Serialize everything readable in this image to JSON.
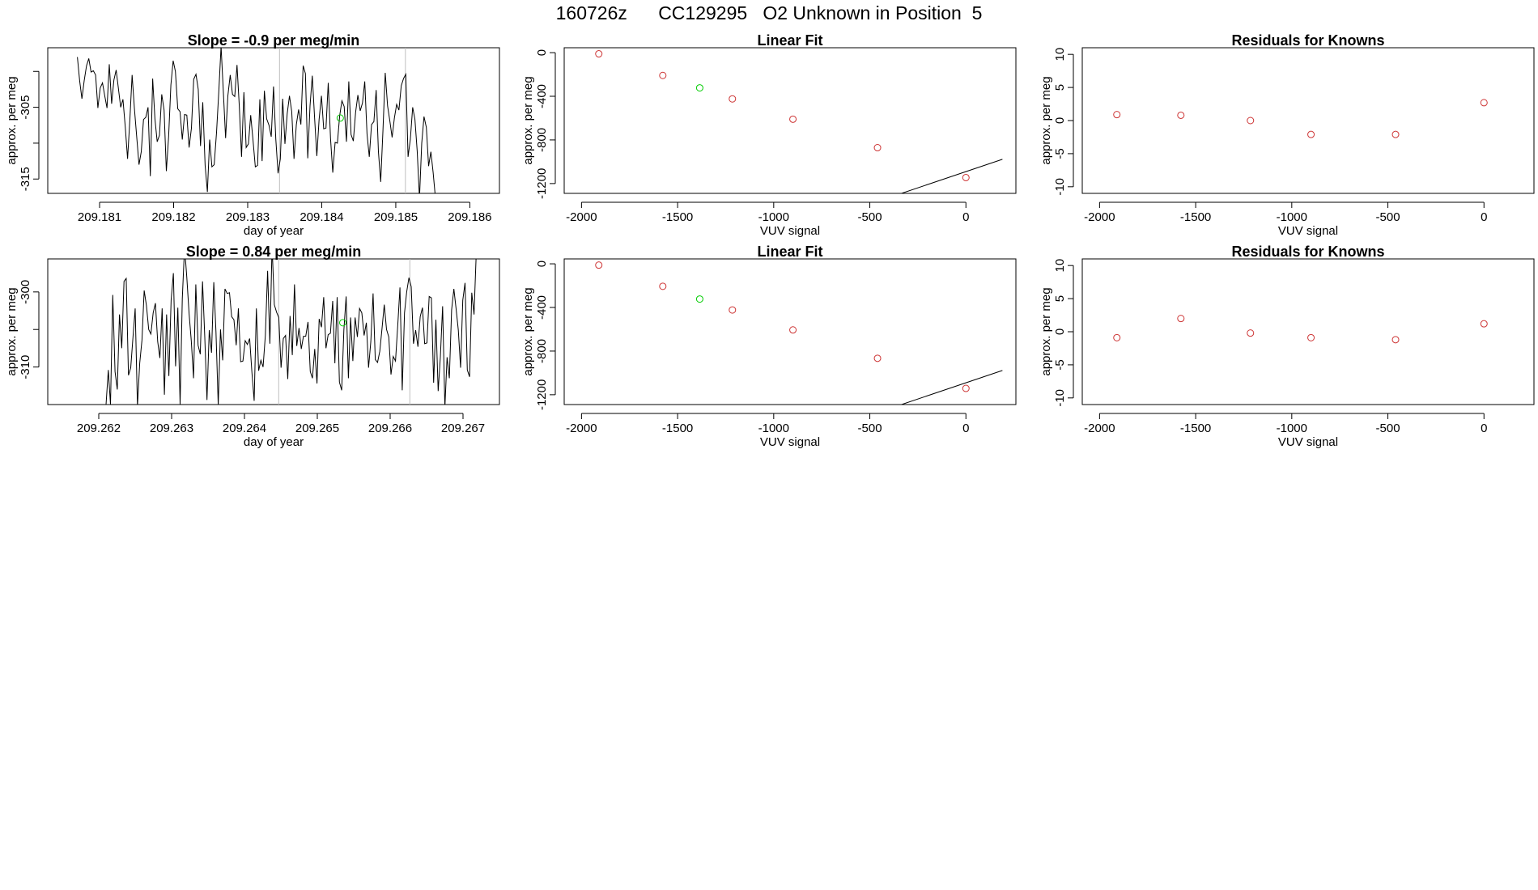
{
  "figure_title": "160726z      CC129295   O2 Unknown in Position  5",
  "colors": {
    "known": "#cd3333",
    "unknown": "#00cc00",
    "trace": "#000000",
    "marker_line": "#bebebe"
  },
  "chart_data": [
    {
      "id": "slope-row1",
      "type": "line",
      "title": "Slope =  -0.9  per meg/min",
      "xlabel": "day of year",
      "ylabel": "approx. per meg",
      "xlim": [
        209.1803,
        209.1864
      ],
      "ylim": [
        -317,
        -296.7
      ],
      "x_ticks": [
        209.181,
        209.182,
        209.183,
        209.184,
        209.185,
        209.186
      ],
      "y_ticks": [
        -315,
        -310,
        -305,
        -300
      ],
      "y_tick_labels": [
        "-315",
        "",
        "-305",
        ""
      ],
      "vertical_markers": [
        209.18343,
        209.18513
      ],
      "series": [
        {
          "name": "trace",
          "x_start": 209.1807,
          "x_step": 3.08e-05,
          "values": [
            -298.0,
            -301.3,
            -303.8,
            -301.3,
            -299.2,
            -298.2,
            -300.1,
            -299.9,
            -300.5,
            -305.1,
            -302.3,
            -301.6,
            -303.4,
            -305.1,
            -299.0,
            -304.5,
            -301.2,
            -299.8,
            -302.4,
            -305.0,
            -303.9,
            -307.8,
            -312.2,
            -306.8,
            -300.5,
            -305.1,
            -309.0,
            -313.0,
            -311.2,
            -306.7,
            -306.4,
            -305.0,
            -314.6,
            -301.0,
            -306.6,
            -309.8,
            -308.9,
            -303.2,
            -305.4,
            -313.9,
            -309.1,
            -301.9,
            -298.5,
            -300.0,
            -305.2,
            -305.6,
            -309.5,
            -306.0,
            -306.1,
            -310.6,
            -307.9,
            -301.1,
            -300.4,
            -302.5,
            -310.4,
            -304.3,
            -313.1,
            -316.8,
            -309.5,
            -313.3,
            -313.0,
            -308.5,
            -302.8,
            -296.5,
            -302.8,
            -309.3,
            -303.4,
            -300.5,
            -303.2,
            -303.5,
            -299.1,
            -304.8,
            -311.9,
            -302.9,
            -310.6,
            -310.1,
            -306.1,
            -309.5,
            -313.3,
            -313.1,
            -303.9,
            -312.5,
            -302.7,
            -306.6,
            -307.5,
            -309.1,
            -302.1,
            -309.4,
            -314.2,
            -312.2,
            -303.8,
            -310.1,
            -305.9,
            -303.4,
            -305.6,
            -312.2,
            -307.4,
            -305.3,
            -307.4,
            -299.2,
            -300.3,
            -312.1,
            -304.8,
            -300.6,
            -306.4,
            -311.8,
            -306.7,
            -303.4,
            -308.0,
            -307.9,
            -301.6,
            -309.3,
            -314.1,
            -309.9,
            -310.0,
            -306.2,
            -304.1,
            -304.9,
            -309.8,
            -301.4,
            -308.8,
            -309.7,
            -305.7,
            -303.3,
            -305.5,
            -304.4,
            -301.4,
            -308.7,
            -311.9,
            -307.4,
            -307.0,
            -302.6,
            -311.2,
            -315.4,
            -308.2,
            -300.2,
            -304.8,
            -306.9,
            -309.2,
            -306.5,
            -304.6,
            -305.4,
            -302.0,
            -301.0,
            -300.4,
            -311.9,
            -309.5,
            -305.0,
            -306.7,
            -311.1,
            -317.7,
            -310.0,
            -306.3,
            -307.8,
            -313.2,
            -311.2,
            -314.1,
            -317.6
          ]
        }
      ],
      "unknown_points": [
        {
          "x": 209.18425,
          "y": -306.5
        }
      ]
    },
    {
      "id": "linfit-row1",
      "type": "scatter",
      "title": "Linear Fit",
      "xlabel": "VUV signal",
      "ylabel": "approx. per meg",
      "xlim": [
        -2090,
        260
      ],
      "ylim": [
        -1290,
        45
      ],
      "x_ticks": [
        -2000,
        -1500,
        -1000,
        -500,
        0
      ],
      "y_ticks": [
        -1200,
        -800,
        -400,
        0
      ],
      "fit_line": {
        "slope": 0.595,
        "intercept": -1090.5,
        "x_range": [
          -1910,
          190
        ]
      },
      "known_points": [
        {
          "x": -1910,
          "y": -11
        },
        {
          "x": -1577,
          "y": -209
        },
        {
          "x": -1215,
          "y": -424
        },
        {
          "x": -900,
          "y": -610
        },
        {
          "x": -460,
          "y": -871
        },
        {
          "x": 0,
          "y": -1145
        }
      ],
      "unknown_points": [
        {
          "x": -1385,
          "y": -323
        }
      ]
    },
    {
      "id": "resid-row1",
      "type": "scatter",
      "title": "Residuals for Knowns",
      "xlabel": "VUV signal",
      "ylabel": "approx. per meg",
      "xlim": [
        -2090,
        260
      ],
      "ylim": [
        -11,
        11
      ],
      "x_ticks": [
        -2000,
        -1500,
        -1000,
        -500,
        0
      ],
      "y_ticks": [
        -10,
        -5,
        0,
        5,
        10
      ],
      "known_points": [
        {
          "x": -1910,
          "y": 0.9
        },
        {
          "x": -1577,
          "y": 0.8
        },
        {
          "x": -1215,
          "y": 0.0
        },
        {
          "x": -900,
          "y": -2.1
        },
        {
          "x": -460,
          "y": -2.1
        },
        {
          "x": 0,
          "y": 2.7
        }
      ]
    },
    {
      "id": "slope-row2",
      "type": "line",
      "title": "Slope =  0.84  per meg/min",
      "xlabel": "day of year",
      "ylabel": "approx. per meg",
      "xlim": [
        209.2613,
        209.2675
      ],
      "ylim": [
        -315,
        -295.6
      ],
      "x_ticks": [
        209.262,
        209.263,
        209.264,
        209.265,
        209.266,
        209.267
      ],
      "y_ticks": [
        -310,
        -305,
        -300
      ],
      "y_tick_labels": [
        "-310",
        "",
        "-300"
      ],
      "vertical_markers": [
        209.26447,
        209.26627
      ],
      "series": [
        {
          "name": "trace",
          "x_start": 209.2621,
          "x_step": 3.08e-05,
          "values": [
            -315.0,
            -310.4,
            -315.0,
            -300.4,
            -310.6,
            -313.0,
            -303.0,
            -307.5,
            -298.6,
            -298.2,
            -311.1,
            -310.1,
            -306.0,
            -302.2,
            -315.2,
            -309.5,
            -306.4,
            -299.8,
            -301.8,
            -305.0,
            -305.6,
            -302.8,
            -301.5,
            -306.6,
            -308.8,
            -302.2,
            -313.7,
            -303.0,
            -311.2,
            -301.1,
            -297.5,
            -309.9,
            -302.1,
            -315.0,
            -300.9,
            -294.0,
            -298.1,
            -302.9,
            -306.5,
            -311.5,
            -299.0,
            -307.1,
            -308.3,
            -298.6,
            -306.1,
            -314.4,
            -305.1,
            -308.1,
            -298.7,
            -305.3,
            -315.1,
            -305.0,
            -309.1,
            -299.6,
            -300.2,
            -300.1,
            -303.3,
            -303.7,
            -307.1,
            -302.2,
            -309.3,
            -309.2,
            -306.5,
            -307.0,
            -306.2,
            -310.7,
            -314.5,
            -302.2,
            -310.5,
            -309.1,
            -310.0,
            -305.8,
            -297.2,
            -306.9,
            -293.8,
            -301.7,
            -302.7,
            -303.4,
            -310.1,
            -306.2,
            -305.8,
            -311.6,
            -303.2,
            -308.4,
            -299.0,
            -307.2,
            -304.8,
            -307.6,
            -305.9,
            -305.9,
            -304.0,
            -310.6,
            -311.5,
            -307.6,
            -312.2,
            -303.6,
            -304.7,
            -300.7,
            -307.5,
            -305.7,
            -305.5,
            -301.2,
            -309.5,
            -300.7,
            -312.0,
            -313.1,
            -305.1,
            -300.6,
            -311.5,
            -303.4,
            -309.2,
            -303.4,
            -306.0,
            -302.2,
            -302.8,
            -305.8,
            -304.1,
            -310.1,
            -306.6,
            -300.2,
            -309.0,
            -309.4,
            -307.9,
            -304.8,
            -301.7,
            -305.0,
            -306.0,
            -311.0,
            -308.6,
            -309.2,
            -304.4,
            -299.4,
            -313.1,
            -302.8,
            -300.0,
            -298.1,
            -299.3,
            -306.9,
            -305.1,
            -307.3,
            -303.3,
            -302.1,
            -306.9,
            -306.8,
            -300.6,
            -300.8,
            -312.1,
            -303.7,
            -313.2,
            -308.7,
            -301.9,
            -315.4,
            -308.7,
            -311.5,
            -302.4,
            -299.6,
            -302.2,
            -305.1,
            -310.1,
            -301.1,
            -298.8,
            -310.4,
            -311.3,
            -300.1,
            -303.0,
            -294.7
          ]
        }
      ],
      "unknown_points": [
        {
          "x": 209.26535,
          "y": -304.1
        }
      ]
    },
    {
      "id": "linfit-row2",
      "type": "scatter",
      "title": "Linear Fit",
      "xlabel": "VUV signal",
      "ylabel": "approx. per meg",
      "xlim": [
        -2090,
        260
      ],
      "ylim": [
        -1290,
        45
      ],
      "x_ticks": [
        -2000,
        -1500,
        -1000,
        -500,
        0
      ],
      "y_ticks": [
        -1200,
        -800,
        -400,
        0
      ],
      "fit_line": {
        "slope": 0.595,
        "intercept": -1090.5,
        "x_range": [
          -1910,
          190
        ]
      },
      "known_points": [
        {
          "x": -1910,
          "y": -12
        },
        {
          "x": -1577,
          "y": -206
        },
        {
          "x": -1215,
          "y": -423
        },
        {
          "x": -900,
          "y": -606
        },
        {
          "x": -460,
          "y": -866
        },
        {
          "x": 0,
          "y": -1142
        }
      ],
      "unknown_points": [
        {
          "x": -1385,
          "y": -323
        }
      ]
    },
    {
      "id": "resid-row2",
      "type": "scatter",
      "title": "Residuals for Knowns",
      "xlabel": "VUV signal",
      "ylabel": "approx. per meg",
      "xlim": [
        -2090,
        260
      ],
      "ylim": [
        -11,
        11
      ],
      "x_ticks": [
        -2000,
        -1500,
        -1000,
        -500,
        0
      ],
      "y_ticks": [
        -10,
        -5,
        0,
        5,
        10
      ],
      "known_points": [
        {
          "x": -1910,
          "y": -0.9
        },
        {
          "x": -1577,
          "y": 2.0
        },
        {
          "x": -1215,
          "y": -0.2
        },
        {
          "x": -900,
          "y": -0.9
        },
        {
          "x": -460,
          "y": -1.2
        },
        {
          "x": 0,
          "y": 1.2
        }
      ]
    }
  ]
}
